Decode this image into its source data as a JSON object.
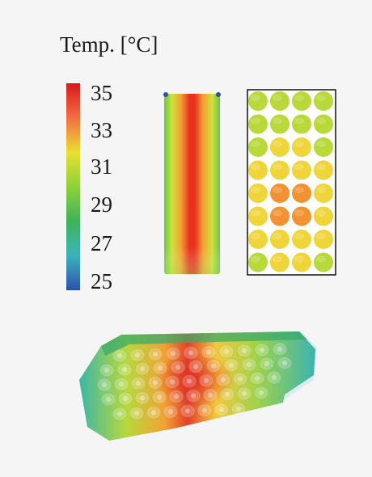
{
  "legend": {
    "title": "Temp. [°C]",
    "ticks": [
      "35",
      "33",
      "31",
      "29",
      "27",
      "25"
    ],
    "range": [
      25,
      35
    ],
    "colors": [
      "#d7191c",
      "#f46d43",
      "#e8e030",
      "#8fd13a",
      "#3fb35a",
      "#3cb3b8",
      "#2c4fb0"
    ]
  },
  "panels": {
    "cross_section": {
      "cells_rows": 8,
      "cells_cols": 4
    },
    "pack_3d": {}
  }
}
